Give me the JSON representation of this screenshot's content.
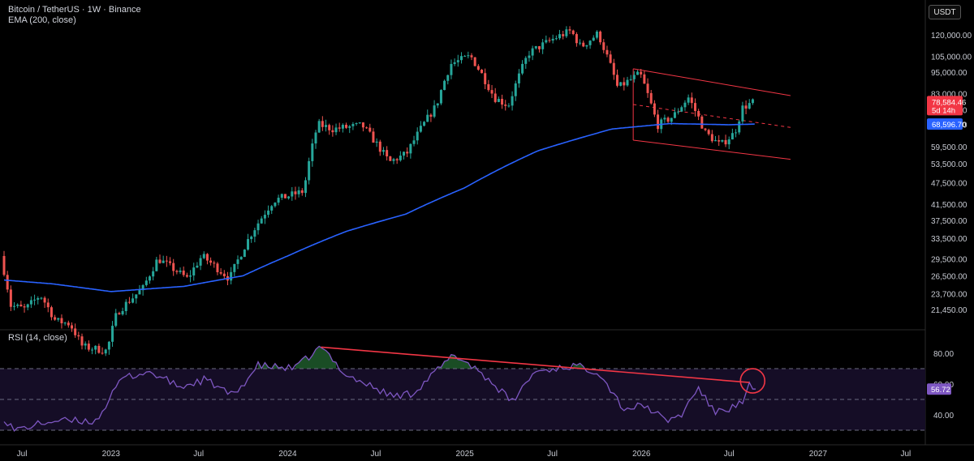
{
  "header": {
    "symbol_line": "Bitcoin / TetherUS · 1W · Binance",
    "ema_label": "EMA (200, close)",
    "rsi_label": "RSI (14, close)",
    "unit_button": "USDT"
  },
  "colors": {
    "up": "#26a69a",
    "down": "#ef5350",
    "ema": "#2962ff",
    "rsi": "#7e57c2",
    "trend": "#f23645"
  },
  "price_badges": {
    "last_price": "78,584.46",
    "countdown": "5d 14h",
    "ema_value": "68,596.70"
  },
  "rsi_badge": "56.72",
  "chart_data": {
    "type": "candlestick",
    "price_scale": "log",
    "price_ticks": [
      "120,000.00",
      "105,000.00",
      "95,000.00",
      "83,000.00",
      "75,000.00",
      "68,500.00",
      "59,500.00",
      "53,500.00",
      "47,500.00",
      "41,500.00",
      "37,500.00",
      "33,500.00",
      "29,500.00",
      "26,500.00",
      "23,700.00",
      "21,450.00"
    ],
    "rsi_ticks": [
      "80.00",
      "60.00",
      "40.00"
    ],
    "time_ticks": [
      "Jul",
      "2023",
      "Jul",
      "2024",
      "Jul",
      "2025",
      "Jul",
      "2026",
      "Jul",
      "2027",
      "Jul"
    ],
    "price_path": [
      [
        "2022-05-25",
        30000
      ],
      [
        "2022-06-15",
        22000
      ],
      [
        "2022-07-15",
        21500
      ],
      [
        "2022-08-15",
        23500
      ],
      [
        "2022-09-15",
        20000
      ],
      [
        "2022-10-15",
        19600
      ],
      [
        "2022-11-10",
        17000
      ],
      [
        "2022-12-31",
        16550
      ],
      [
        "2023-01-20",
        21000
      ],
      [
        "2023-03-15",
        24500
      ],
      [
        "2023-04-15",
        29500
      ],
      [
        "2023-06-15",
        26000
      ],
      [
        "2023-07-15",
        30000
      ],
      [
        "2023-09-10",
        26000
      ],
      [
        "2023-10-25",
        34500
      ],
      [
        "2023-12-10",
        42500
      ],
      [
        "2024-02-10",
        45000
      ],
      [
        "2024-03-10",
        68500
      ],
      [
        "2024-04-10",
        66500
      ],
      [
        "2024-06-10",
        68000
      ],
      [
        "2024-08-05",
        54000
      ],
      [
        "2024-09-10",
        57000
      ],
      [
        "2024-11-10",
        77000
      ],
      [
        "2024-12-10",
        100000
      ],
      [
        "2025-01-20",
        105000
      ],
      [
        "2025-03-10",
        81000
      ],
      [
        "2025-04-08",
        77000
      ],
      [
        "2025-05-20",
        107000
      ],
      [
        "2025-07-15",
        118000
      ],
      [
        "2025-08-15",
        123000
      ],
      [
        "2025-09-05",
        111000
      ],
      [
        "2025-10-10",
        121000
      ],
      [
        "2025-11-20",
        86000
      ],
      [
        "2026-01-05",
        94000
      ],
      [
        "2026-02-10",
        68000
      ],
      [
        "2026-03-15",
        72000
      ],
      [
        "2026-04-15",
        81000
      ],
      [
        "2026-05-20",
        65000
      ],
      [
        "2026-06-20",
        60000
      ],
      [
        "2026-07-20",
        65000
      ],
      [
        "2026-08-05",
        76000
      ],
      [
        "2026-08-25",
        78584
      ]
    ],
    "ema200_path": [
      [
        "2022-05-25",
        25800
      ],
      [
        "2022-09-01",
        25200
      ],
      [
        "2023-01-01",
        24000
      ],
      [
        "2023-06-01",
        24800
      ],
      [
        "2023-10-01",
        26500
      ],
      [
        "2024-01-01",
        30000
      ],
      [
        "2024-05-01",
        35000
      ],
      [
        "2024-09-01",
        39000
      ],
      [
        "2025-01-01",
        46000
      ],
      [
        "2025-06-01",
        58000
      ],
      [
        "2025-11-01",
        66500
      ],
      [
        "2026-03-01",
        68800
      ],
      [
        "2026-07-01",
        68300
      ],
      [
        "2026-08-25",
        68596
      ]
    ],
    "rsi_path": [
      [
        "2022-05-25",
        38
      ],
      [
        "2022-06-15",
        30
      ],
      [
        "2022-09-01",
        36
      ],
      [
        "2022-12-01",
        36
      ],
      [
        "2023-01-25",
        64
      ],
      [
        "2023-03-20",
        68
      ],
      [
        "2023-05-25",
        58
      ],
      [
        "2023-07-15",
        63
      ],
      [
        "2023-09-10",
        52
      ],
      [
        "2023-11-01",
        72
      ],
      [
        "2024-01-15",
        70
      ],
      [
        "2024-03-10",
        84
      ],
      [
        "2024-05-01",
        66
      ],
      [
        "2024-08-05",
        52
      ],
      [
        "2024-09-15",
        54
      ],
      [
        "2024-12-10",
        79
      ],
      [
        "2025-01-25",
        70
      ],
      [
        "2025-03-15",
        56
      ],
      [
        "2025-04-08",
        48
      ],
      [
        "2025-05-25",
        68
      ],
      [
        "2025-08-15",
        72
      ],
      [
        "2025-10-05",
        68
      ],
      [
        "2025-11-25",
        44
      ],
      [
        "2026-01-10",
        46
      ],
      [
        "2026-02-20",
        36
      ],
      [
        "2026-03-25",
        40
      ],
      [
        "2026-04-28",
        58
      ],
      [
        "2026-05-30",
        42
      ],
      [
        "2026-06-30",
        44
      ],
      [
        "2026-08-01",
        48
      ],
      [
        "2026-08-12",
        60
      ],
      [
        "2026-08-25",
        56.72
      ]
    ],
    "price_channel": {
      "upper": [
        [
          "2025-12-15",
          97000
        ],
        [
          "2026-11-05",
          82000
        ]
      ],
      "lower": [
        [
          "2025-12-15",
          62000
        ],
        [
          "2026-11-05",
          55000
        ]
      ]
    },
    "rsi_trendline": [
      [
        "2024-03-10",
        84
      ],
      [
        "2026-08-12",
        61
      ]
    ],
    "rsi_bands": [
      70,
      50,
      30
    ]
  }
}
